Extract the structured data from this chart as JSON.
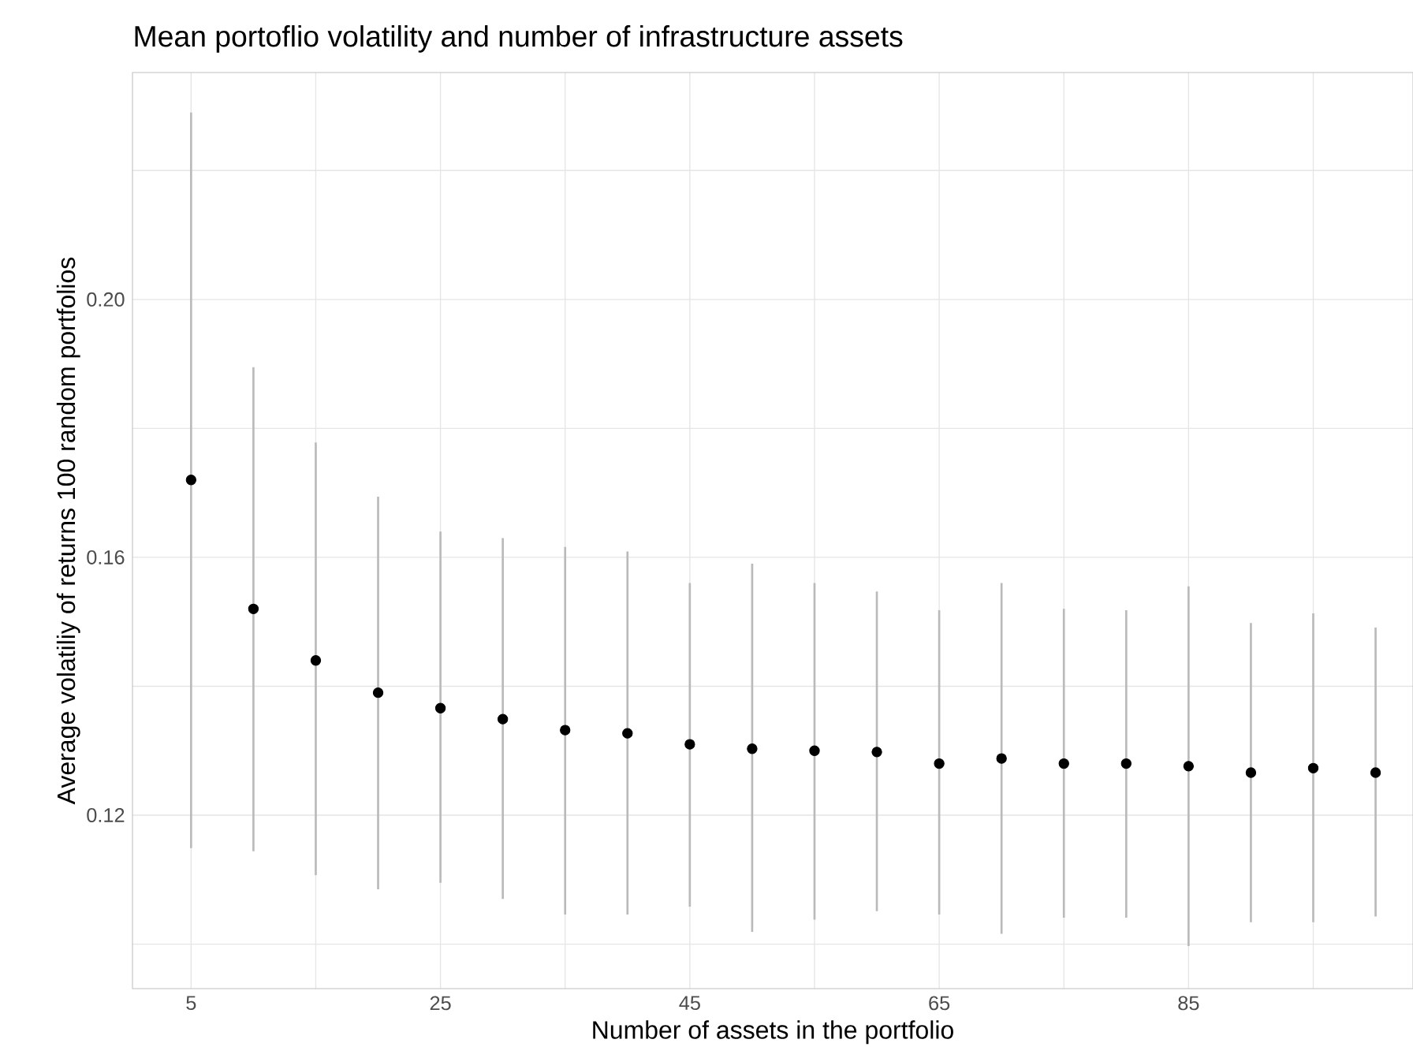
{
  "chart_data": {
    "type": "scatter",
    "title": "Mean portoflio volatility and number of infrastructure assets",
    "xlabel": "Number of assets in the portfolio",
    "ylabel": "Average volatiliy of returns 100 random portfolios",
    "x": [
      5,
      10,
      15,
      20,
      25,
      30,
      35,
      40,
      45,
      50,
      55,
      60,
      65,
      70,
      75,
      80,
      85,
      90,
      95,
      100
    ],
    "series": [
      {
        "color": "#000000",
        "values": [
          0.172,
          0.152,
          0.144,
          0.139,
          0.1366,
          0.1349,
          0.1332,
          0.1327,
          0.131,
          0.1303,
          0.13,
          0.1298,
          0.128,
          0.1288,
          0.128,
          0.128,
          0.1276,
          0.1266,
          0.1273,
          0.1266
        ],
        "errors": [
          [
            0.1149,
            0.229
          ],
          [
            0.1144,
            0.1895
          ],
          [
            0.1107,
            0.1778
          ],
          [
            0.1085,
            0.1694
          ],
          [
            0.1095,
            0.164
          ],
          [
            0.107,
            0.163
          ],
          [
            0.1046,
            0.1616
          ],
          [
            0.1046,
            0.1609
          ],
          [
            0.1058,
            0.156
          ],
          [
            0.1019,
            0.159
          ],
          [
            0.1038,
            0.156
          ],
          [
            0.1051,
            0.1547
          ],
          [
            0.1046,
            0.1518
          ],
          [
            0.1016,
            0.156
          ],
          [
            0.1041,
            0.152
          ],
          [
            0.1041,
            0.1518
          ],
          [
            0.0997,
            0.1555
          ],
          [
            0.1034,
            0.1498
          ],
          [
            0.1034,
            0.1513
          ],
          [
            0.1043,
            0.1491
          ]
        ]
      }
    ],
    "xlim": [
      0.3,
      103
    ],
    "ylim": [
      0.0931,
      0.2352
    ],
    "xticks": [
      5,
      {
        "value": 15,
        "label": null
      },
      25,
      {
        "value": 35,
        "label": null
      },
      45,
      {
        "value": 55,
        "label": null
      },
      65,
      {
        "value": 75,
        "label": null
      },
      85,
      {
        "value": 95,
        "label": null
      }
    ],
    "yticks": [
      {
        "value": 0.1,
        "label": null
      },
      {
        "value": 0.12,
        "label": "0.12"
      },
      {
        "value": 0.14,
        "label": null
      },
      {
        "value": 0.16,
        "label": "0.16"
      },
      {
        "value": 0.18,
        "label": null
      },
      {
        "value": 0.2,
        "label": "0.20"
      },
      {
        "value": 0.22,
        "label": null
      }
    ],
    "grid": true,
    "marker": "circle"
  }
}
